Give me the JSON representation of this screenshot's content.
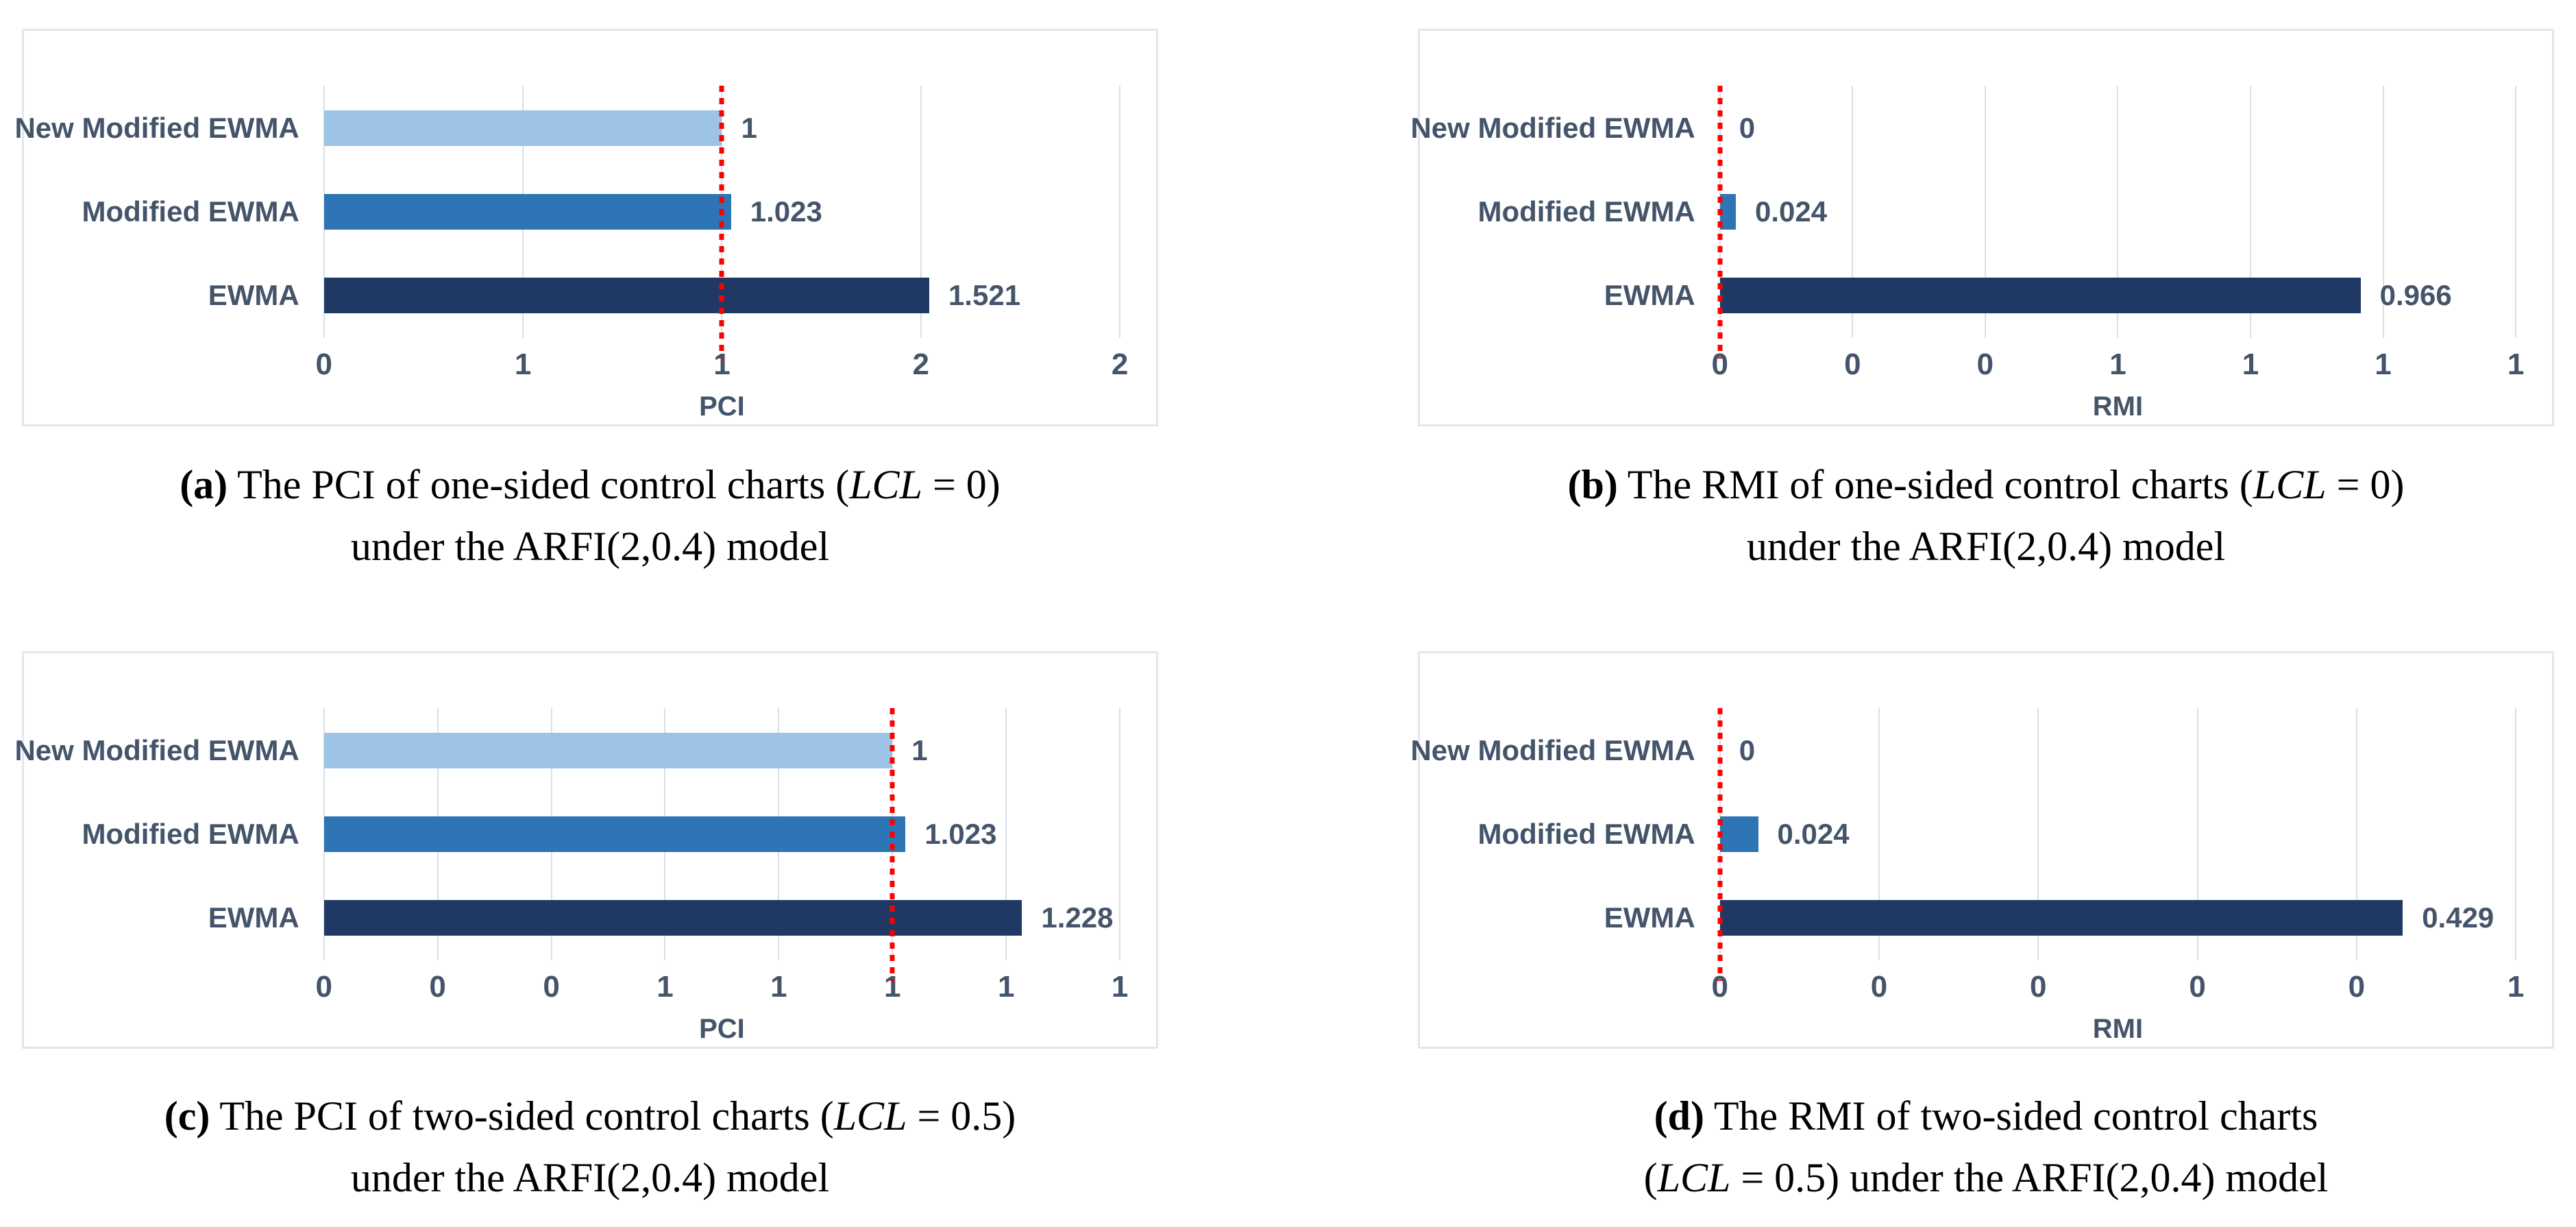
{
  "figure": {
    "background": "#FFFFFF"
  },
  "colors": {
    "bar_light_blue": "#9DC3E6",
    "bar_medium_blue": "#2E75B6",
    "bar_dark_navy": "#203864",
    "chart_text_slate": "#44546A",
    "gridline": "#D9DEE7",
    "panel_border": "#E3E6EB",
    "reference_line_red": "#FF0000",
    "caption_text": "#000000"
  },
  "chart_data": [
    {
      "id": "a",
      "type": "bar",
      "orientation": "horizontal",
      "xlabel": "PCI",
      "categories": [
        "New Modified EWMA",
        "Modified EWMA",
        "EWMA"
      ],
      "values": [
        1,
        1.023,
        1.521
      ],
      "value_labels": [
        "1",
        "1.023",
        "1.521"
      ],
      "xlim": [
        0,
        2
      ],
      "xticks": [
        {
          "value": 0,
          "label": "0"
        },
        {
          "value": 0.5,
          "label": "1"
        },
        {
          "value": 1,
          "label": "1"
        },
        {
          "value": 1.5,
          "label": "2"
        },
        {
          "value": 2,
          "label": "2"
        }
      ],
      "reference_line": 1,
      "bar_colors": [
        "#9DC3E6",
        "#2E75B6",
        "#203864"
      ],
      "grid": "vertical"
    },
    {
      "id": "b",
      "type": "bar",
      "orientation": "horizontal",
      "xlabel": "RMI",
      "categories": [
        "New Modified EWMA",
        "Modified EWMA",
        "EWMA"
      ],
      "values": [
        0,
        0.024,
        0.966
      ],
      "value_labels": [
        "0",
        "0.024",
        "0.966"
      ],
      "xlim": [
        0,
        1.2
      ],
      "xticks": [
        {
          "value": 0,
          "label": "0"
        },
        {
          "value": 0.2,
          "label": "0"
        },
        {
          "value": 0.4,
          "label": "0"
        },
        {
          "value": 0.6,
          "label": "1"
        },
        {
          "value": 0.8,
          "label": "1"
        },
        {
          "value": 1.0,
          "label": "1"
        },
        {
          "value": 1.2,
          "label": "1"
        }
      ],
      "reference_line": 0,
      "bar_colors": [
        "#9DC3E6",
        "#2E75B6",
        "#203864"
      ],
      "grid": "vertical"
    },
    {
      "id": "c",
      "type": "bar",
      "orientation": "horizontal",
      "xlabel": "PCI",
      "categories": [
        "New Modified EWMA",
        "Modified EWMA",
        "EWMA"
      ],
      "values": [
        1,
        1.023,
        1.228
      ],
      "value_labels": [
        "1",
        "1.023",
        "1.228"
      ],
      "xlim": [
        0,
        1.4
      ],
      "xticks": [
        {
          "value": 0,
          "label": "0"
        },
        {
          "value": 0.2,
          "label": "0"
        },
        {
          "value": 0.4,
          "label": "0"
        },
        {
          "value": 0.6,
          "label": "1"
        },
        {
          "value": 0.8,
          "label": "1"
        },
        {
          "value": 1.0,
          "label": "1"
        },
        {
          "value": 1.2,
          "label": "1"
        },
        {
          "value": 1.4,
          "label": "1"
        }
      ],
      "reference_line": 1,
      "bar_colors": [
        "#9DC3E6",
        "#2E75B6",
        "#203864"
      ],
      "grid": "vertical"
    },
    {
      "id": "d",
      "type": "bar",
      "orientation": "horizontal",
      "xlabel": "RMI",
      "categories": [
        "New Modified EWMA",
        "Modified EWMA",
        "EWMA"
      ],
      "values": [
        0,
        0.024,
        0.429
      ],
      "value_labels": [
        "0",
        "0.024",
        "0.429"
      ],
      "xlim": [
        0,
        0.5
      ],
      "xticks": [
        {
          "value": 0,
          "label": "0"
        },
        {
          "value": 0.1,
          "label": "0"
        },
        {
          "value": 0.2,
          "label": "0"
        },
        {
          "value": 0.3,
          "label": "0"
        },
        {
          "value": 0.4,
          "label": "0"
        },
        {
          "value": 0.5,
          "label": "1"
        }
      ],
      "reference_line": 0,
      "bar_colors": [
        "#9DC3E6",
        "#2E75B6",
        "#203864"
      ],
      "grid": "vertical"
    }
  ],
  "captions": [
    {
      "id": "a",
      "lines": [
        [
          {
            "text": "(a)",
            "bold": true
          },
          {
            "text": " The PCI of one-sided control charts ("
          },
          {
            "text": "LCL",
            "italic": true
          },
          {
            "text": " = 0)"
          }
        ],
        [
          {
            "text": "under the ARFI(2,0.4) model"
          }
        ]
      ]
    },
    {
      "id": "b",
      "lines": [
        [
          {
            "text": "(b)",
            "bold": true
          },
          {
            "text": " The RMI of one-sided control charts ("
          },
          {
            "text": "LCL",
            "italic": true
          },
          {
            "text": " = 0)"
          }
        ],
        [
          {
            "text": "under the ARFI(2,0.4) model"
          }
        ]
      ]
    },
    {
      "id": "c",
      "lines": [
        [
          {
            "text": "(c)",
            "bold": true
          },
          {
            "text": " The PCI of two-sided control charts ("
          },
          {
            "text": "LCL",
            "italic": true
          },
          {
            "text": " = 0.5)"
          }
        ],
        [
          {
            "text": "under the ARFI(2,0.4) model"
          }
        ]
      ]
    },
    {
      "id": "d",
      "lines": [
        [
          {
            "text": "(d)",
            "bold": true
          },
          {
            "text": " The RMI of two-sided control charts"
          }
        ],
        [
          {
            "text": "("
          },
          {
            "text": "LCL",
            "italic": true
          },
          {
            "text": " = 0.5) under the ARFI(2,0.4) model"
          }
        ]
      ]
    }
  ]
}
